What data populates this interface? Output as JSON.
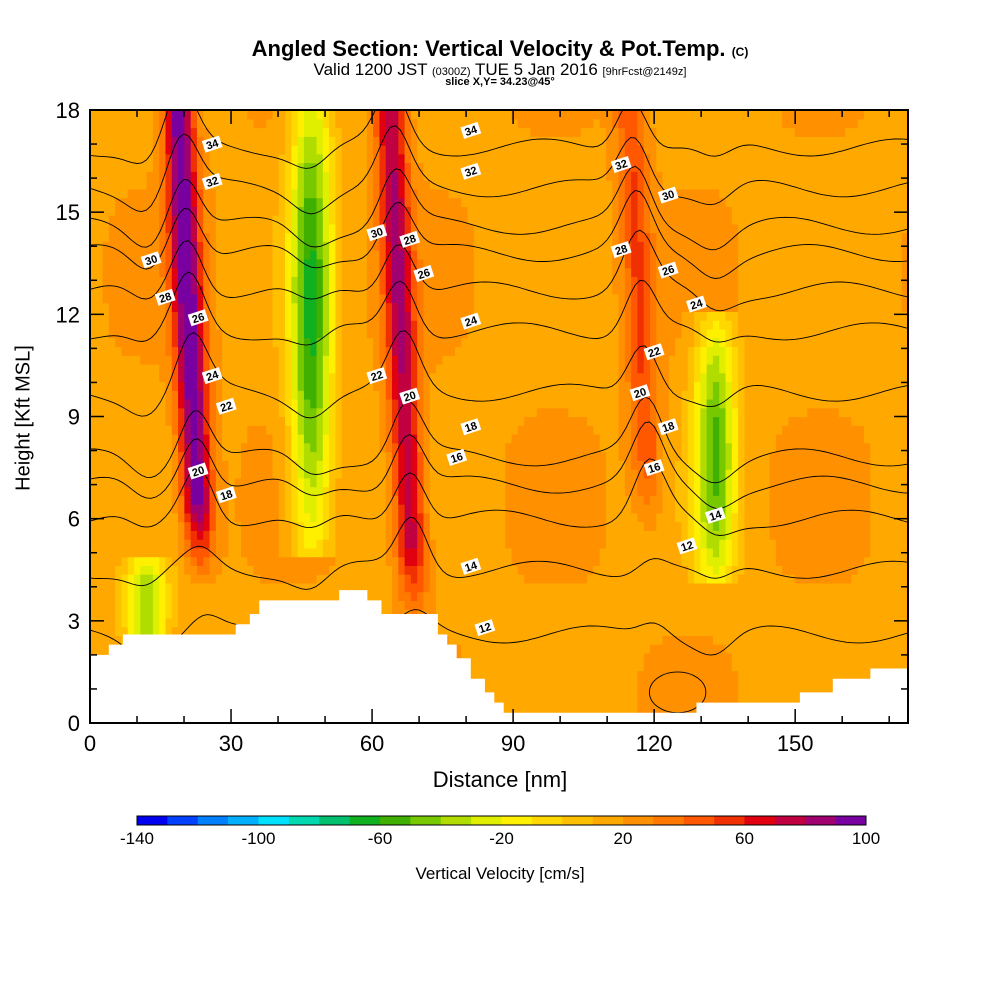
{
  "header": {
    "title": "Angled Section: Vertical Velocity & Pot.Temp.",
    "title_mark": "(C)",
    "subtitle_a": "Valid 1200 JST",
    "subtitle_b": "(0300Z)",
    "subtitle_c": "TUE 5 Jan 2016",
    "subtitle_d": "[9hrFcst@2149z]",
    "slice": "slice X,Y= 34.23@45°"
  },
  "chart_data": {
    "type": "heatmap",
    "xlabel": "Distance [nm]",
    "ylabel": "Height [Kft MSL]",
    "xlim": [
      0,
      174
    ],
    "ylim": [
      0,
      18
    ],
    "x_ticks": [
      0,
      30,
      60,
      90,
      120,
      150
    ],
    "y_ticks": [
      0,
      3,
      6,
      9,
      12,
      15,
      18
    ],
    "colorbar": {
      "title": "Vertical Velocity [cm/s]",
      "tick_labels": [
        -140,
        -100,
        -60,
        -20,
        20,
        60,
        100
      ],
      "levels": [
        -140,
        -130,
        -120,
        -110,
        -100,
        -90,
        -80,
        -70,
        -60,
        -50,
        -40,
        -30,
        -20,
        -10,
        0,
        10,
        20,
        30,
        40,
        50,
        60,
        70,
        80,
        90,
        100
      ],
      "colors": [
        "#0000f0",
        "#0040ff",
        "#0080ff",
        "#00b0ff",
        "#00e0ff",
        "#00d8b0",
        "#00c070",
        "#10b020",
        "#40b000",
        "#78c800",
        "#b0dc00",
        "#e0ee00",
        "#fff000",
        "#ffd800",
        "#ffc000",
        "#ffa800",
        "#ff9000",
        "#ff7800",
        "#ff5800",
        "#f03000",
        "#e00010",
        "#c00040",
        "#a00070",
        "#7800a0"
      ]
    },
    "updrafts": [
      {
        "x": 22,
        "z_bottom": 5.5,
        "z_top": 18,
        "peak_cm_s": 100
      },
      {
        "x": 67,
        "z_bottom": 4.2,
        "z_top": 18,
        "peak_cm_s": 80
      },
      {
        "x": 118,
        "z_bottom": 6.8,
        "z_top": 18,
        "peak_cm_s": 50
      }
    ],
    "downdrafts": [
      {
        "x": 47,
        "z_bottom": 6,
        "z_top": 18,
        "min_cm_s": -60
      },
      {
        "x": 133,
        "z_bottom": 5,
        "z_top": 11,
        "min_cm_s": -50
      },
      {
        "x": 12,
        "z_bottom": 2.5,
        "z_top": 4,
        "min_cm_s": -40
      }
    ],
    "terrain": [
      {
        "x": 0,
        "z": 2.0
      },
      {
        "x": 4,
        "z": 2.3
      },
      {
        "x": 7,
        "z": 2.6
      },
      {
        "x": 28,
        "z": 2.6
      },
      {
        "x": 31,
        "z": 2.9
      },
      {
        "x": 34,
        "z": 3.2
      },
      {
        "x": 36,
        "z": 3.6
      },
      {
        "x": 52,
        "z": 3.6
      },
      {
        "x": 53,
        "z": 3.9
      },
      {
        "x": 58,
        "z": 3.9
      },
      {
        "x": 59,
        "z": 3.6
      },
      {
        "x": 61,
        "z": 3.6
      },
      {
        "x": 62,
        "z": 3.2
      },
      {
        "x": 72,
        "z": 3.2
      },
      {
        "x": 74,
        "z": 2.6
      },
      {
        "x": 76,
        "z": 2.3
      },
      {
        "x": 78,
        "z": 1.9
      },
      {
        "x": 81,
        "z": 1.3
      },
      {
        "x": 84,
        "z": 0.9
      },
      {
        "x": 86,
        "z": 0.6
      },
      {
        "x": 88,
        "z": 0.3
      },
      {
        "x": 127,
        "z": 0.3
      },
      {
        "x": 129,
        "z": 0.6
      },
      {
        "x": 143,
        "z": 0.6
      },
      {
        "x": 151,
        "z": 0.9
      },
      {
        "x": 158,
        "z": 1.3
      },
      {
        "x": 166,
        "z": 1.6
      },
      {
        "x": 174,
        "z": 1.6
      }
    ],
    "theta_contours": [
      {
        "value": 12,
        "z_base": 2.6
      },
      {
        "value": 14,
        "z_base": 4.5
      },
      {
        "value": 16,
        "z_base": 6.0
      },
      {
        "value": 18,
        "z_base": 7.0
      },
      {
        "value": 20,
        "z_base": 7.8
      },
      {
        "value": 22,
        "z_base": 9.7
      },
      {
        "value": 24,
        "z_base": 11.5
      },
      {
        "value": 26,
        "z_base": 12.7
      },
      {
        "value": 28,
        "z_base": 13.8
      },
      {
        "value": 30,
        "z_base": 14.6
      },
      {
        "value": 32,
        "z_base": 15.7
      },
      {
        "value": 34,
        "z_base": 16.9
      }
    ],
    "contour_labels": [
      {
        "x": 26,
        "z": 17.0,
        "text": "34"
      },
      {
        "x": 26,
        "z": 15.9,
        "text": "32"
      },
      {
        "x": 13,
        "z": 13.6,
        "text": "30"
      },
      {
        "x": 16,
        "z": 12.5,
        "text": "28"
      },
      {
        "x": 23,
        "z": 11.9,
        "text": "26"
      },
      {
        "x": 26,
        "z": 10.2,
        "text": "24"
      },
      {
        "x": 29,
        "z": 9.3,
        "text": "22"
      },
      {
        "x": 23,
        "z": 7.4,
        "text": "20"
      },
      {
        "x": 29,
        "z": 6.7,
        "text": "18"
      },
      {
        "x": 61,
        "z": 14.4,
        "text": "30"
      },
      {
        "x": 68,
        "z": 14.2,
        "text": "28"
      },
      {
        "x": 71,
        "z": 13.2,
        "text": "26"
      },
      {
        "x": 61,
        "z": 10.2,
        "text": "22"
      },
      {
        "x": 68,
        "z": 9.6,
        "text": "20"
      },
      {
        "x": 81,
        "z": 17.4,
        "text": "34"
      },
      {
        "x": 81,
        "z": 16.2,
        "text": "32"
      },
      {
        "x": 81,
        "z": 11.8,
        "text": "24"
      },
      {
        "x": 81,
        "z": 8.7,
        "text": "18"
      },
      {
        "x": 78,
        "z": 7.8,
        "text": "16"
      },
      {
        "x": 81,
        "z": 4.6,
        "text": "14"
      },
      {
        "x": 84,
        "z": 2.8,
        "text": "12"
      },
      {
        "x": 113,
        "z": 16.4,
        "text": "32"
      },
      {
        "x": 123,
        "z": 15.5,
        "text": "30"
      },
      {
        "x": 113,
        "z": 13.9,
        "text": "28"
      },
      {
        "x": 123,
        "z": 13.3,
        "text": "26"
      },
      {
        "x": 129,
        "z": 12.3,
        "text": "24"
      },
      {
        "x": 120,
        "z": 10.9,
        "text": "22"
      },
      {
        "x": 117,
        "z": 9.7,
        "text": "20"
      },
      {
        "x": 123,
        "z": 8.7,
        "text": "18"
      },
      {
        "x": 120,
        "z": 7.5,
        "text": "16"
      },
      {
        "x": 133,
        "z": 6.1,
        "text": "14"
      },
      {
        "x": 127,
        "z": 5.2,
        "text": "12"
      }
    ]
  }
}
